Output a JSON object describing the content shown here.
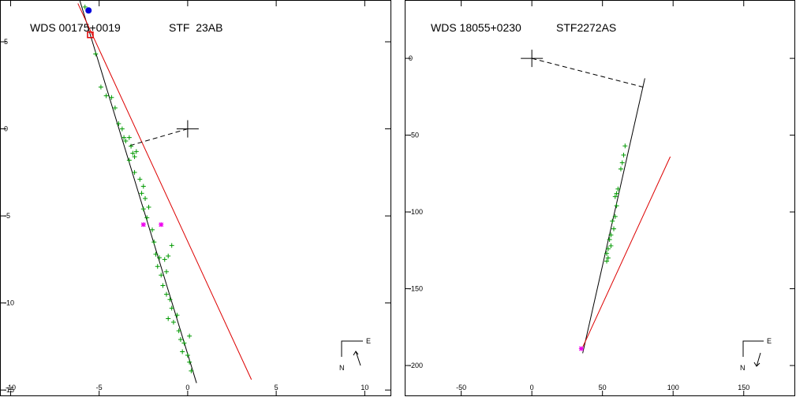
{
  "chart_data": [
    {
      "type": "scatter",
      "title_left": "WDS 00175+0019",
      "title_right": "STF  23AB",
      "xlabel": "",
      "ylabel": "",
      "xlim": [
        -10.6,
        11.5
      ],
      "ylim": [
        -15.4,
        7.4
      ],
      "grid": false,
      "x_ticks": [
        -10,
        -5,
        0,
        5,
        10
      ],
      "x_tick_labels": [
        "-10",
        "-5",
        "0",
        "5",
        "10"
      ],
      "y_ticks": [
        5,
        0,
        -5,
        -10,
        -15
      ],
      "y_tick_labels": [
        "5",
        "0",
        "-5",
        "-10",
        "-15"
      ],
      "compass": {
        "east": "E",
        "north": "N",
        "arrow": "up"
      },
      "colors": {
        "observations": "#009900",
        "orbit": "#000000",
        "second_line": "#dd0000",
        "special": "#ee00ee",
        "start_marker": "#0000dd",
        "periastron": "#dd0000"
      },
      "primary": [
        0,
        0
      ],
      "observation_points": [
        [
          -5.8,
          7.0
        ],
        [
          -5.2,
          4.3
        ],
        [
          -4.9,
          2.4
        ],
        [
          -4.6,
          1.9
        ],
        [
          -4.3,
          1.8
        ],
        [
          -4.1,
          1.2
        ],
        [
          -3.9,
          0.3
        ],
        [
          -3.7,
          0.0
        ],
        [
          -3.6,
          -0.5
        ],
        [
          -3.5,
          -0.7
        ],
        [
          -3.3,
          -0.5
        ],
        [
          -3.2,
          -1.0
        ],
        [
          -3.1,
          -1.4
        ],
        [
          -3.0,
          -1.6
        ],
        [
          -3.3,
          -1.8
        ],
        [
          -2.9,
          -1.3
        ],
        [
          -3.0,
          -2.5
        ],
        [
          -2.7,
          -2.9
        ],
        [
          -2.5,
          -3.3
        ],
        [
          -2.6,
          -3.7
        ],
        [
          -2.4,
          -4.0
        ],
        [
          -2.2,
          -4.5
        ],
        [
          -2.5,
          -4.6
        ],
        [
          -2.3,
          -5.1
        ],
        [
          -2.0,
          -5.8
        ],
        [
          -1.9,
          -6.5
        ],
        [
          -1.8,
          -7.2
        ],
        [
          -1.6,
          -7.4
        ],
        [
          -1.3,
          -7.5
        ],
        [
          -1.1,
          -7.3
        ],
        [
          -0.9,
          -6.7
        ],
        [
          -1.7,
          -7.9
        ],
        [
          -1.5,
          -8.4
        ],
        [
          -1.2,
          -8.2
        ],
        [
          -1.4,
          -9.0
        ],
        [
          -1.2,
          -9.5
        ],
        [
          -1.0,
          -9.8
        ],
        [
          -0.9,
          -10.3
        ],
        [
          -1.1,
          -10.9
        ],
        [
          -0.8,
          -11.1
        ],
        [
          -0.6,
          -10.7
        ],
        [
          -0.5,
          -11.6
        ],
        [
          -0.4,
          -12.1
        ],
        [
          -0.2,
          -12.3
        ],
        [
          -0.3,
          -12.8
        ],
        [
          0.1,
          -11.9
        ],
        [
          0.0,
          -13.0
        ],
        [
          0.1,
          -13.4
        ],
        [
          0.2,
          -13.9
        ]
      ],
      "special_points": [
        [
          -1.5,
          -5.5
        ],
        [
          -2.5,
          -5.5
        ]
      ],
      "start_point": [
        -5.6,
        6.8
      ],
      "periastron_point": [
        -5.5,
        5.4
      ],
      "orbit_line": [
        [
          -6.1,
          7.4
        ],
        [
          0.5,
          -14.6
        ]
      ],
      "second_line": [
        [
          -6.2,
          7.2
        ],
        [
          3.6,
          -14.4
        ]
      ],
      "node_line": [
        [
          0,
          0
        ],
        [
          -3.4,
          -1.0
        ]
      ]
    },
    {
      "type": "scatter",
      "title_left": "WDS 18055+0230",
      "title_right": "STF2272AS",
      "xlabel": "",
      "ylabel": "",
      "xlim": [
        -90,
        187
      ],
      "ylim": [
        -220.5,
        38
      ],
      "grid": false,
      "x_ticks": [
        -50,
        0,
        50,
        100,
        150
      ],
      "x_tick_labels": [
        "-50",
        "0",
        "50",
        "100",
        "150"
      ],
      "y_ticks": [
        0,
        -50,
        -100,
        -150,
        -200
      ],
      "y_tick_labels": [
        "0",
        "-50",
        "-100",
        "-150",
        "-200"
      ],
      "compass": {
        "east": "E",
        "north": "N",
        "arrow": "down"
      },
      "colors": {
        "observations": "#009900",
        "orbit": "#000000",
        "second_line": "#dd0000",
        "special": "#ee00ee"
      },
      "primary": [
        0,
        0
      ],
      "observation_points": [
        [
          66,
          -57
        ],
        [
          65,
          -63
        ],
        [
          64,
          -68
        ],
        [
          63,
          -72
        ],
        [
          61,
          -85
        ],
        [
          60,
          -88
        ],
        [
          59,
          -90
        ],
        [
          60,
          -96
        ],
        [
          59,
          -103
        ],
        [
          57,
          -106
        ],
        [
          58,
          -111
        ],
        [
          56,
          -115
        ],
        [
          55,
          -118
        ],
        [
          56,
          -122
        ],
        [
          54,
          -124
        ],
        [
          53,
          -127
        ],
        [
          54,
          -130
        ],
        [
          53,
          -132
        ]
      ],
      "special_points": [
        [
          35,
          -189
        ]
      ],
      "orbit_line": [
        [
          80,
          -13
        ],
        [
          36,
          -192
        ]
      ],
      "second_line": [
        [
          98,
          -64
        ],
        [
          35,
          -190
        ]
      ],
      "node_line": [
        [
          0,
          0
        ],
        [
          80,
          -19
        ]
      ]
    }
  ]
}
